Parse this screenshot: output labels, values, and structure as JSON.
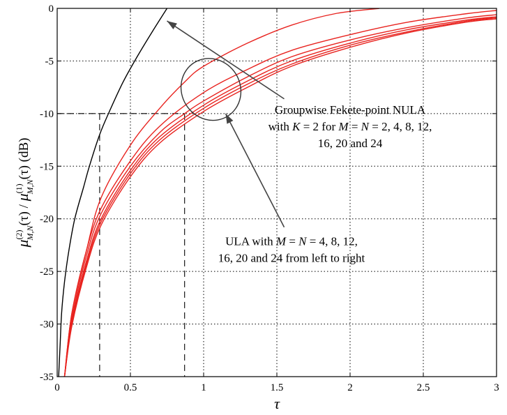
{
  "chart_data": {
    "type": "line",
    "xlabel": "τ",
    "ylabel": {
      "mu": "μ",
      "sub": "M,N",
      "sup2": "(2)",
      "sup1": "(1)",
      "tau_paren": "(τ)",
      "slash": " / ",
      "unit": "(dB)"
    },
    "xlim": [
      0,
      3
    ],
    "ylim": [
      -35,
      0
    ],
    "grid": true,
    "x_ticks": [
      "0",
      "0.5",
      "1",
      "1.5",
      "2",
      "2.5",
      "3"
    ],
    "y_ticks": [
      "0",
      "-5",
      "-10",
      "-15",
      "-20",
      "-25",
      "-30",
      "-35"
    ],
    "series": [
      {
        "color": "#000000",
        "points": [
          [
            0.01,
            -35
          ],
          [
            0.02,
            -32
          ],
          [
            0.03,
            -29
          ],
          [
            0.05,
            -26
          ],
          [
            0.08,
            -23
          ],
          [
            0.12,
            -20
          ],
          [
            0.18,
            -17
          ],
          [
            0.22,
            -15
          ],
          [
            0.29,
            -12
          ],
          [
            0.35,
            -10
          ],
          [
            0.45,
            -7
          ],
          [
            0.55,
            -4.5
          ],
          [
            0.65,
            -2.2
          ],
          [
            0.75,
            0
          ]
        ]
      },
      {
        "color": "#e8231f",
        "points": [
          [
            0.05,
            -35
          ],
          [
            0.1,
            -29
          ],
          [
            0.2,
            -23
          ],
          [
            0.3,
            -18
          ],
          [
            0.5,
            -13
          ],
          [
            0.7,
            -9.5
          ],
          [
            0.87,
            -7
          ],
          [
            1.0,
            -5.5
          ],
          [
            1.3,
            -3.3
          ],
          [
            1.6,
            -1.6
          ],
          [
            1.9,
            -0.5
          ],
          [
            2.2,
            0
          ]
        ]
      },
      {
        "color": "#e8231f",
        "points": [
          [
            0.05,
            -35
          ],
          [
            0.1,
            -29
          ],
          [
            0.2,
            -23
          ],
          [
            0.3,
            -19
          ],
          [
            0.5,
            -14.5
          ],
          [
            0.7,
            -11.2
          ],
          [
            1.0,
            -8
          ],
          [
            1.3,
            -5.8
          ],
          [
            1.6,
            -4
          ],
          [
            2.0,
            -2.5
          ],
          [
            2.4,
            -1.3
          ],
          [
            2.8,
            -0.5
          ],
          [
            3.0,
            -0.2
          ]
        ]
      },
      {
        "color": "#e8231f",
        "points": [
          [
            0.05,
            -35
          ],
          [
            0.1,
            -29.5
          ],
          [
            0.2,
            -23.5
          ],
          [
            0.3,
            -19.5
          ],
          [
            0.5,
            -15
          ],
          [
            0.7,
            -11.8
          ],
          [
            0.87,
            -10
          ],
          [
            1.0,
            -8.8
          ],
          [
            1.3,
            -6.5
          ],
          [
            1.6,
            -4.6
          ],
          [
            2.0,
            -3
          ],
          [
            2.4,
            -1.8
          ],
          [
            2.8,
            -0.9
          ],
          [
            3.0,
            -0.6
          ]
        ]
      },
      {
        "color": "#e8231f",
        "points": [
          [
            0.05,
            -35
          ],
          [
            0.1,
            -29.8
          ],
          [
            0.2,
            -24
          ],
          [
            0.3,
            -20
          ],
          [
            0.5,
            -15.4
          ],
          [
            0.7,
            -12.2
          ],
          [
            1.0,
            -9.2
          ],
          [
            1.3,
            -6.9
          ],
          [
            1.6,
            -5
          ],
          [
            2.0,
            -3.3
          ],
          [
            2.4,
            -2
          ],
          [
            2.8,
            -1.1
          ],
          [
            3.0,
            -0.8
          ]
        ]
      },
      {
        "color": "#e8231f",
        "points": [
          [
            0.05,
            -35
          ],
          [
            0.1,
            -30
          ],
          [
            0.2,
            -24.3
          ],
          [
            0.3,
            -20.3
          ],
          [
            0.5,
            -15.7
          ],
          [
            0.7,
            -12.5
          ],
          [
            1.0,
            -9.5
          ],
          [
            1.3,
            -7.2
          ],
          [
            1.6,
            -5.3
          ],
          [
            2.0,
            -3.5
          ],
          [
            2.4,
            -2.2
          ],
          [
            2.8,
            -1.2
          ],
          [
            3.0,
            -0.9
          ]
        ]
      },
      {
        "color": "#e8231f",
        "points": [
          [
            0.05,
            -35
          ],
          [
            0.1,
            -30.2
          ],
          [
            0.2,
            -24.6
          ],
          [
            0.3,
            -20.6
          ],
          [
            0.5,
            -16
          ],
          [
            0.7,
            -12.8
          ],
          [
            1.0,
            -9.8
          ],
          [
            1.3,
            -7.5
          ],
          [
            1.6,
            -5.5
          ],
          [
            2.0,
            -3.7
          ],
          [
            2.4,
            -2.3
          ],
          [
            2.8,
            -1.3
          ],
          [
            3.0,
            -1.0
          ]
        ]
      }
    ],
    "reference_lines": [
      {
        "from": [
          0,
          -10
        ],
        "to": [
          0.87,
          -10
        ]
      },
      {
        "from": [
          0.29,
          -10
        ],
        "to": [
          0.29,
          -35
        ]
      },
      {
        "from": [
          0.87,
          -10
        ],
        "to": [
          0.87,
          -35
        ]
      }
    ],
    "ellipse": {
      "cx": 1.05,
      "cy": -7.7,
      "rx": 0.2,
      "ry": 3.0
    },
    "annotations": [
      {
        "lines": [
          "Groupwise Fekete-point NULA",
          "with {K} = 2 for {M} = {N} = 2, 4, 8, 12,",
          "16, 20 and 24"
        ],
        "anchor": "middle",
        "x": 2.0,
        "y": -10,
        "arrow_to": [
          0.75,
          -1.2
        ]
      },
      {
        "lines": [
          "ULA with {M} = {N} = 4, 8, 12,",
          "16, 20 and 24 from left to right"
        ],
        "anchor": "middle",
        "x": 1.6,
        "y": -22.5,
        "arrow_to": [
          1.15,
          -10
        ]
      }
    ]
  }
}
